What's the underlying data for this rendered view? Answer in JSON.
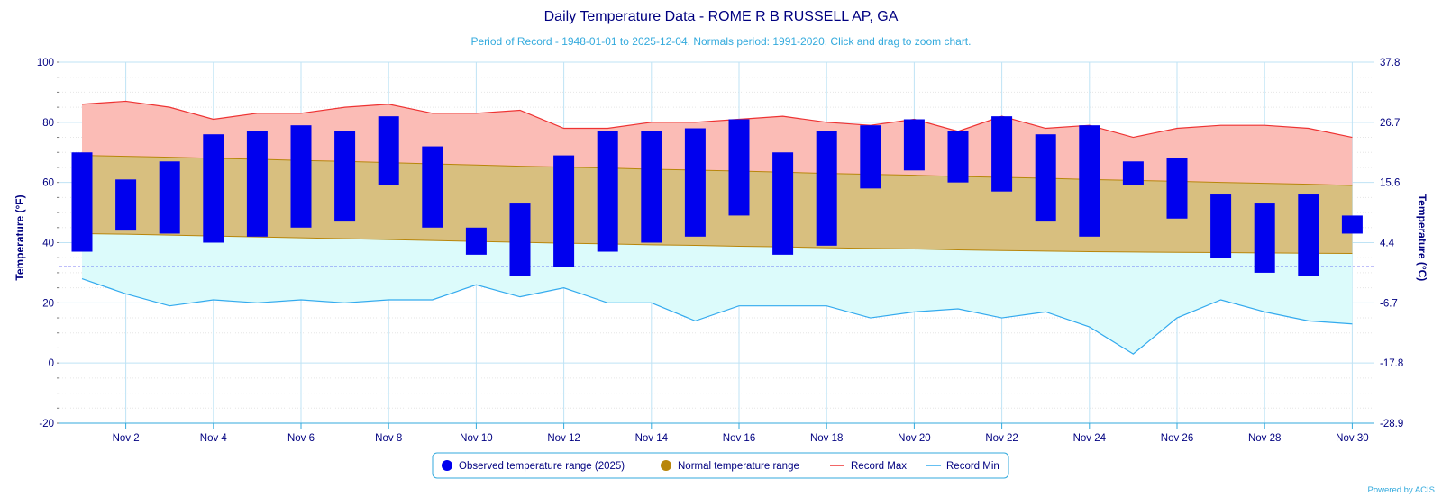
{
  "chart_data": {
    "type": "range-bar",
    "title": "Daily Temperature Data - ROME R B RUSSELL AP, GA",
    "subtitle": "Period of Record - 1948-01-01 to 2025-12-04. Normals period: 1991-2020. Click and drag to zoom chart.",
    "ylabel_left": "Temperature (°F)",
    "ylabel_right": "Temperature (°C)",
    "ylim": [
      -20,
      100
    ],
    "y_ticks": [
      -20,
      0,
      20,
      40,
      60,
      80,
      100
    ],
    "y2_ticks": [
      "-28.9",
      "-17.8",
      "-6.7",
      "4.4",
      "15.6",
      "26.7",
      "37.8"
    ],
    "freezing_line": 32,
    "days": [
      1,
      2,
      3,
      4,
      5,
      6,
      7,
      8,
      9,
      10,
      11,
      12,
      13,
      14,
      15,
      16,
      17,
      18,
      19,
      20,
      21,
      22,
      23,
      24,
      25,
      26,
      27,
      28,
      29,
      30
    ],
    "x_tick_days": [
      2,
      4,
      6,
      8,
      10,
      12,
      14,
      16,
      18,
      20,
      22,
      24,
      26,
      28,
      30
    ],
    "x_tick_labels": [
      "Nov 2",
      "Nov 4",
      "Nov 6",
      "Nov 8",
      "Nov 10",
      "Nov 12",
      "Nov 14",
      "Nov 16",
      "Nov 18",
      "Nov 20",
      "Nov 22",
      "Nov 24",
      "Nov 26",
      "Nov 28",
      "Nov 30"
    ],
    "observed_high": [
      70,
      61,
      67,
      76,
      77,
      79,
      77,
      82,
      72,
      45,
      53,
      69,
      77,
      77,
      78,
      81,
      70,
      77,
      79,
      81,
      77,
      82,
      76,
      79,
      67,
      68,
      56,
      53,
      56,
      49
    ],
    "observed_low": [
      37,
      44,
      43,
      40,
      42,
      45,
      47,
      59,
      45,
      36,
      29,
      32,
      37,
      40,
      42,
      49,
      36,
      39,
      58,
      64,
      60,
      57,
      47,
      42,
      59,
      48,
      35,
      30,
      29,
      43
    ],
    "normal_high": [
      69,
      68.7,
      68.4,
      68,
      67.7,
      67.3,
      67,
      66.6,
      66.2,
      65.8,
      65.4,
      65.1,
      64.8,
      64.4,
      64.1,
      63.8,
      63.4,
      63,
      62.7,
      62.4,
      62,
      61.7,
      61.4,
      61,
      60.7,
      60.4,
      60,
      59.7,
      59.4,
      59
    ],
    "normal_low": [
      43,
      42.8,
      42.5,
      42.2,
      41.9,
      41.6,
      41.3,
      41,
      40.7,
      40.4,
      40.1,
      39.8,
      39.6,
      39.3,
      39.1,
      38.8,
      38.6,
      38.3,
      38.1,
      37.9,
      37.6,
      37.4,
      37.2,
      37,
      36.9,
      36.8,
      36.7,
      36.6,
      36.5,
      36.4
    ],
    "record_max": [
      86,
      87,
      85,
      81,
      83,
      83,
      85,
      86,
      83,
      83,
      84,
      78,
      78,
      80,
      80,
      81,
      82,
      80,
      79,
      81,
      77,
      82,
      78,
      79,
      75,
      78,
      79,
      79,
      78,
      75
    ],
    "record_min": [
      28,
      23,
      19,
      21,
      20,
      21,
      20,
      21,
      21,
      26,
      22,
      25,
      20,
      20,
      14,
      19,
      19,
      19,
      15,
      17,
      18,
      15,
      17,
      12,
      3,
      15,
      21,
      17,
      14,
      13
    ],
    "legend": [
      {
        "label": "Observed temperature range (2025)",
        "color": "#0000ee",
        "symbol": "dot"
      },
      {
        "label": "Normal temperature range",
        "color": "#b8860b",
        "symbol": "dot"
      },
      {
        "label": "Record Max",
        "color": "#ee3333",
        "symbol": "line"
      },
      {
        "label": "Record Min",
        "color": "#33aaee",
        "symbol": "line"
      }
    ],
    "credit": "Powered by ACIS",
    "colors": {
      "observed": "#0000ee",
      "normal_fill": "#d8bf7f",
      "normal_line": "#b8860b",
      "record_max_line": "#ee3333",
      "record_max_fill": "#fbbcb6",
      "record_min_line": "#33aaee",
      "record_min_fill": "#dcfbfb",
      "grid": "#bfe3f5",
      "freezing": "#0000ee"
    }
  }
}
